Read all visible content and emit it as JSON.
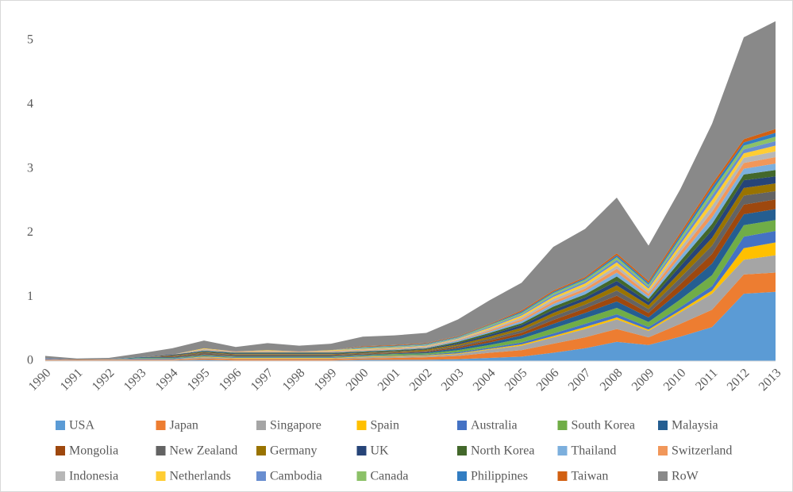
{
  "chart_data": {
    "type": "stacked_area",
    "categories": [
      "1990",
      "1991",
      "1992",
      "1993",
      "1994",
      "1995",
      "1996",
      "1997",
      "1998",
      "1999",
      "2000",
      "2001",
      "2002",
      "2003",
      "2004",
      "2005",
      "2006",
      "2007",
      "2008",
      "2009",
      "2010",
      "2011",
      "2012",
      "2013"
    ],
    "ylim": [
      0,
      5.5
    ],
    "yticks": [
      0,
      1,
      2,
      3,
      4,
      5
    ],
    "grid": false,
    "legend": "bottom",
    "series": [
      {
        "name": "USA",
        "color": "#5b9bd5",
        "values": [
          0.01,
          0.01,
          0.01,
          0.01,
          0.01,
          0.02,
          0.01,
          0.01,
          0.01,
          0.01,
          0.02,
          0.02,
          0.02,
          0.03,
          0.05,
          0.07,
          0.13,
          0.2,
          0.3,
          0.25,
          0.38,
          0.53,
          1.05,
          1.08
        ]
      },
      {
        "name": "Japan",
        "color": "#ed7d31",
        "values": [
          0.01,
          0.01,
          0.01,
          0.01,
          0.01,
          0.02,
          0.02,
          0.02,
          0.02,
          0.02,
          0.02,
          0.03,
          0.04,
          0.05,
          0.08,
          0.1,
          0.14,
          0.17,
          0.2,
          0.12,
          0.2,
          0.27,
          0.3,
          0.3
        ]
      },
      {
        "name": "Singapore",
        "color": "#a5a5a5",
        "values": [
          0.01,
          0,
          0.01,
          0.01,
          0.01,
          0.02,
          0.01,
          0.01,
          0.01,
          0.01,
          0.02,
          0.02,
          0.02,
          0.03,
          0.05,
          0.07,
          0.1,
          0.13,
          0.15,
          0.1,
          0.18,
          0.25,
          0.23,
          0.27
        ]
      },
      {
        "name": "Spain",
        "color": "#ffc000",
        "values": [
          0,
          0,
          0,
          0,
          0,
          0.01,
          0.01,
          0.01,
          0.01,
          0.01,
          0.01,
          0.01,
          0.01,
          0.01,
          0.01,
          0.02,
          0.02,
          0.03,
          0.03,
          0.02,
          0.03,
          0.05,
          0.18,
          0.2
        ]
      },
      {
        "name": "Australia",
        "color": "#4472c4",
        "values": [
          0.01,
          0,
          0,
          0.01,
          0.01,
          0.01,
          0.01,
          0.01,
          0.01,
          0.01,
          0.01,
          0.01,
          0.01,
          0.02,
          0.02,
          0.03,
          0.04,
          0.05,
          0.05,
          0.04,
          0.05,
          0.07,
          0.18,
          0.18
        ]
      },
      {
        "name": "South Korea",
        "color": "#70ad47",
        "values": [
          0,
          0,
          0,
          0.01,
          0.01,
          0.01,
          0.01,
          0.01,
          0.01,
          0.01,
          0.01,
          0.02,
          0.02,
          0.03,
          0.04,
          0.06,
          0.08,
          0.09,
          0.1,
          0.08,
          0.12,
          0.17,
          0.18,
          0.17
        ]
      },
      {
        "name": "Malaysia",
        "color": "#255e91",
        "values": [
          0,
          0,
          0,
          0.01,
          0.01,
          0.01,
          0.01,
          0.01,
          0.01,
          0.01,
          0.01,
          0.01,
          0.02,
          0.03,
          0.04,
          0.05,
          0.07,
          0.08,
          0.1,
          0.07,
          0.13,
          0.18,
          0.17,
          0.17
        ]
      },
      {
        "name": "Mongolia",
        "color": "#9e480e",
        "values": [
          0,
          0,
          0,
          0,
          0.01,
          0.01,
          0.01,
          0.01,
          0.01,
          0.01,
          0.01,
          0.01,
          0.01,
          0.02,
          0.03,
          0.04,
          0.06,
          0.07,
          0.09,
          0.07,
          0.11,
          0.15,
          0.15,
          0.15
        ]
      },
      {
        "name": "New Zealand",
        "color": "#636363",
        "values": [
          0,
          0,
          0,
          0,
          0.01,
          0.02,
          0.01,
          0.01,
          0.01,
          0.01,
          0.01,
          0.01,
          0.01,
          0.02,
          0.03,
          0.04,
          0.06,
          0.06,
          0.08,
          0.06,
          0.1,
          0.13,
          0.14,
          0.13
        ]
      },
      {
        "name": "Germany",
        "color": "#997300",
        "values": [
          0,
          0,
          0,
          0,
          0.01,
          0.01,
          0.01,
          0.01,
          0.01,
          0.01,
          0.01,
          0.01,
          0.02,
          0.02,
          0.03,
          0.04,
          0.05,
          0.06,
          0.08,
          0.06,
          0.09,
          0.12,
          0.12,
          0.12
        ]
      },
      {
        "name": "UK",
        "color": "#264478",
        "values": [
          0,
          0,
          0,
          0,
          0.01,
          0.01,
          0.01,
          0.01,
          0.01,
          0.01,
          0.01,
          0.01,
          0.01,
          0.02,
          0.03,
          0.04,
          0.05,
          0.05,
          0.07,
          0.05,
          0.09,
          0.12,
          0.12,
          0.11
        ]
      },
      {
        "name": "North Korea",
        "color": "#43682b",
        "values": [
          0,
          0,
          0,
          0,
          0,
          0.01,
          0.01,
          0.01,
          0.01,
          0.01,
          0.01,
          0.01,
          0.01,
          0.02,
          0.03,
          0.03,
          0.05,
          0.05,
          0.07,
          0.05,
          0.08,
          0.1,
          0.09,
          0.1
        ]
      },
      {
        "name": "Thailand",
        "color": "#7cafdd",
        "values": [
          0,
          0,
          0,
          0,
          0,
          0.01,
          0.01,
          0.01,
          0.01,
          0.01,
          0.01,
          0.01,
          0.01,
          0.02,
          0.02,
          0.03,
          0.04,
          0.05,
          0.06,
          0.04,
          0.07,
          0.1,
          0.09,
          0.1
        ]
      },
      {
        "name": "Switzerland",
        "color": "#f1975a",
        "values": [
          0,
          0,
          0,
          0,
          0,
          0.01,
          0.01,
          0.01,
          0.01,
          0.01,
          0.01,
          0.01,
          0.01,
          0.01,
          0.02,
          0.03,
          0.04,
          0.04,
          0.06,
          0.04,
          0.07,
          0.09,
          0.09,
          0.1
        ]
      },
      {
        "name": "Indonesia",
        "color": "#b7b7b7",
        "values": [
          0,
          0,
          0,
          0,
          0,
          0.01,
          0,
          0.01,
          0,
          0.01,
          0.01,
          0.01,
          0.01,
          0.01,
          0.02,
          0.03,
          0.04,
          0.04,
          0.05,
          0.04,
          0.06,
          0.09,
          0.08,
          0.09
        ]
      },
      {
        "name": "Netherlands",
        "color": "#ffcd33",
        "values": [
          0,
          0,
          0,
          0,
          0,
          0.01,
          0,
          0.01,
          0,
          0.01,
          0.01,
          0.01,
          0.01,
          0.01,
          0.02,
          0.03,
          0.03,
          0.04,
          0.05,
          0.04,
          0.06,
          0.09,
          0.07,
          0.09
        ]
      },
      {
        "name": "Cambodia",
        "color": "#698ed0",
        "values": [
          0,
          0,
          0,
          0,
          0,
          0,
          0,
          0,
          0,
          0,
          0.01,
          0.01,
          0.01,
          0.01,
          0.02,
          0.02,
          0.03,
          0.03,
          0.04,
          0.03,
          0.05,
          0.07,
          0.06,
          0.07
        ]
      },
      {
        "name": "Canada",
        "color": "#8cc168",
        "values": [
          0,
          0,
          0,
          0,
          0,
          0,
          0,
          0,
          0,
          0,
          0.01,
          0.01,
          0.01,
          0.01,
          0.02,
          0.02,
          0.03,
          0.03,
          0.04,
          0.03,
          0.05,
          0.07,
          0.06,
          0.07
        ]
      },
      {
        "name": "Philippines",
        "color": "#327dc2",
        "values": [
          0,
          0,
          0,
          0,
          0,
          0,
          0,
          0,
          0,
          0,
          0.01,
          0.01,
          0.01,
          0.01,
          0.01,
          0.02,
          0.02,
          0.02,
          0.03,
          0.03,
          0.04,
          0.06,
          0.05,
          0.06
        ]
      },
      {
        "name": "Taiwan",
        "color": "#d26012",
        "values": [
          0,
          0,
          0,
          0,
          0,
          0,
          0,
          0,
          0,
          0,
          0.01,
          0.01,
          0.01,
          0.01,
          0.01,
          0.02,
          0.02,
          0.02,
          0.03,
          0.03,
          0.04,
          0.05,
          0.05,
          0.06
        ]
      },
      {
        "name": "RoW",
        "color": "#898989",
        "values": [
          0.04,
          0.02,
          0.02,
          0.06,
          0.1,
          0.12,
          0.07,
          0.11,
          0.09,
          0.1,
          0.15,
          0.15,
          0.16,
          0.26,
          0.37,
          0.43,
          0.68,
          0.75,
          0.87,
          0.55,
          0.68,
          0.94,
          1.59,
          1.68
        ]
      }
    ]
  }
}
